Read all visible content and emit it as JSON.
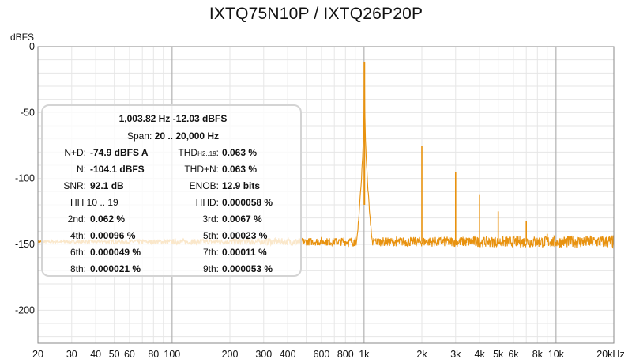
{
  "chart_data": {
    "type": "line",
    "title": "IXTQ75N10P / IXTQ26P20P",
    "ylabel": "dBFS",
    "xlabel": "",
    "x_scale": "log",
    "xlim": [
      20,
      20000
    ],
    "ylim": [
      -225,
      0
    ],
    "grid": true,
    "x_ticks": [
      {
        "v": 20,
        "t": "20"
      },
      {
        "v": 30,
        "t": "30"
      },
      {
        "v": 40,
        "t": "40"
      },
      {
        "v": 50,
        "t": "50"
      },
      {
        "v": 60,
        "t": "60"
      },
      {
        "v": 80,
        "t": "80"
      },
      {
        "v": 100,
        "t": "100"
      },
      {
        "v": 200,
        "t": "200"
      },
      {
        "v": 300,
        "t": "300"
      },
      {
        "v": 400,
        "t": "400"
      },
      {
        "v": 600,
        "t": "600"
      },
      {
        "v": 800,
        "t": "800"
      },
      {
        "v": 1000,
        "t": "1k"
      },
      {
        "v": 2000,
        "t": "2k"
      },
      {
        "v": 3000,
        "t": "3k"
      },
      {
        "v": 4000,
        "t": "4k"
      },
      {
        "v": 5000,
        "t": "5k"
      },
      {
        "v": 6000,
        "t": "6k"
      },
      {
        "v": 8000,
        "t": "8k"
      },
      {
        "v": 10000,
        "t": "10k"
      },
      {
        "v": 20000,
        "t": "20kHz"
      }
    ],
    "y_ticks": [
      {
        "v": 0,
        "t": "0"
      },
      {
        "v": -50,
        "t": "-50"
      },
      {
        "v": -100,
        "t": "-100"
      },
      {
        "v": -150,
        "t": "-150"
      },
      {
        "v": -200,
        "t": "-200"
      }
    ],
    "series": [
      {
        "color": "#e8920f",
        "noise_floor_db": -148,
        "fundamental": {
          "hz": 1003.82,
          "db": -12.03
        },
        "harmonics": [
          {
            "hz": 2000,
            "db": -75
          },
          {
            "hz": 3000,
            "db": -95
          },
          {
            "hz": 4000,
            "db": -112
          },
          {
            "hz": 5000,
            "db": -125
          },
          {
            "hz": 7000,
            "db": -132
          },
          {
            "hz": 9000,
            "db": -142
          }
        ]
      }
    ]
  },
  "info": {
    "header1": "1,003.82 Hz  -12.03 dBFS",
    "span_label": "Span:",
    "span_value": "20 .. 20,000 Hz",
    "rows": [
      {
        "l1": "N+D:",
        "v1": "-74.9 dBFS A",
        "l2": "THD",
        "l2sub": "H2..19",
        "l2end": ":",
        "v2": "0.063 %"
      },
      {
        "l1": "N:",
        "v1": "-104.1 dBFS",
        "l2": "THD+N:",
        "v2": "0.063 %"
      },
      {
        "l1": "SNR:",
        "v1": "92.1 dB",
        "l2": "ENOB:",
        "v2": "12.9 bits"
      },
      {
        "l1": "HH 10 .. 19",
        "v1": "",
        "l2": "HHD:",
        "v2": "0.000058 %"
      },
      {
        "l1": "2nd:",
        "v1": "0.062 %",
        "l2": "3rd:",
        "v2": "0.0067 %"
      },
      {
        "l1": "4th:",
        "v1": "0.00096 %",
        "l2": "5th:",
        "v2": "0.00023 %"
      },
      {
        "l1": "6th:",
        "v1": "0.000049 %",
        "l2": "7th:",
        "v2": "0.00011 %"
      },
      {
        "l1": "8th:",
        "v1": "0.000021 %",
        "l2": "9th:",
        "v2": "0.000053 %"
      }
    ]
  }
}
